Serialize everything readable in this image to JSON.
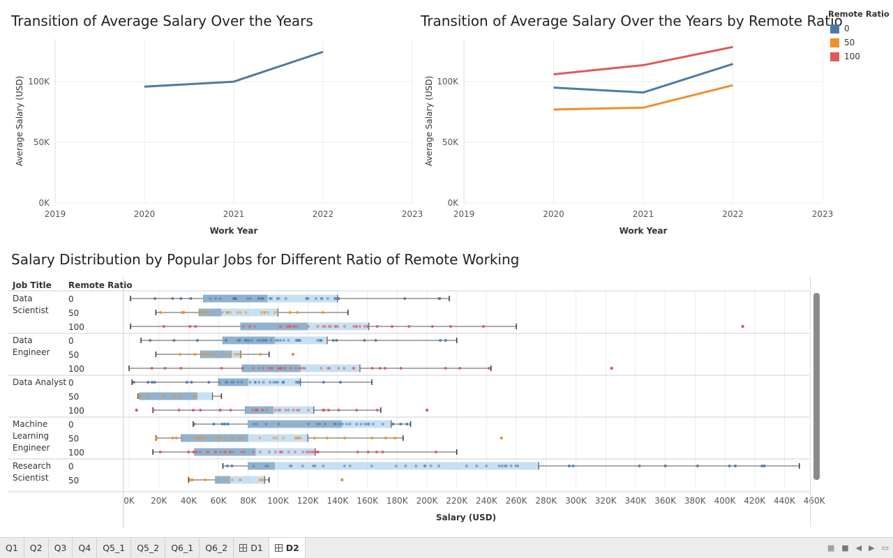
{
  "colors": {
    "r0": "#4e79a7",
    "r50": "#f28e2b",
    "r100": "#e15759",
    "grid": "#ececec",
    "boxDark": "#8fb3cf",
    "boxLight": "#c6e0f2"
  },
  "chart1": {
    "title": "Transition of Average Salary Over the Years",
    "xlabel": "Work Year",
    "ylabel": "Average Salary (USD)",
    "xticks": [
      "2019",
      "2020",
      "2021",
      "2022",
      "2023"
    ],
    "yticks": [
      "0K",
      "50K",
      "100K"
    ]
  },
  "chart2": {
    "title": "Transition of Average Salary Over the Years by Remote Ratio",
    "xlabel": "Work Year",
    "ylabel": "Average Salary (USD)",
    "xticks": [
      "2019",
      "2020",
      "2021",
      "2022",
      "2023"
    ],
    "yticks": [
      "0K",
      "50K",
      "100K"
    ]
  },
  "legend": {
    "title": "Remote Ratio",
    "items": [
      {
        "label": "0",
        "color": "#4e79a7"
      },
      {
        "label": "50",
        "color": "#f28e2b"
      },
      {
        "label": "100",
        "color": "#e15759"
      }
    ]
  },
  "chart3": {
    "title": "Salary Distribution by Popular Jobs for Different Ratio of Remote Working",
    "col_job": "Job Title",
    "col_ratio": "Remote Ratio",
    "xlabel": "Salary (USD)",
    "xticks": [
      "0K",
      "20K",
      "40K",
      "60K",
      "80K",
      "100K",
      "120K",
      "140K",
      "160K",
      "180K",
      "200K",
      "220K",
      "240K",
      "260K",
      "280K",
      "300K",
      "320K",
      "340K",
      "360K",
      "380K",
      "400K",
      "420K",
      "440K",
      "460K"
    ]
  },
  "chart_data": [
    {
      "type": "line",
      "title": "Transition of Average Salary Over the Years",
      "xlabel": "Work Year",
      "ylabel": "Average Salary (USD)",
      "x": [
        2020,
        2021,
        2022
      ],
      "series": [
        {
          "values": [
            95800,
            99900,
            124500
          ]
        }
      ],
      "xlim": [
        2019,
        2023
      ],
      "ylim": [
        0,
        135000
      ],
      "grid": true
    },
    {
      "type": "line",
      "title": "Transition of Average Salary Over the Years by Remote Ratio",
      "xlabel": "Work Year",
      "ylabel": "Average Salary (USD)",
      "x": [
        2020,
        2021,
        2022
      ],
      "series": [
        {
          "name": "0",
          "values": [
            95000,
            91000,
            114500
          ]
        },
        {
          "name": "50",
          "values": [
            77000,
            78500,
            97000
          ]
        },
        {
          "name": "100",
          "values": [
            106000,
            113500,
            128500
          ]
        }
      ],
      "xlim": [
        2019,
        2023
      ],
      "ylim": [
        0,
        135000
      ],
      "grid": true,
      "legend": "top-right"
    },
    {
      "type": "box",
      "title": "Salary Distribution by Popular Jobs for Different Ratio of Remote Working",
      "xlabel": "Salary (USD)",
      "xlim": [
        -4000,
        468000
      ],
      "rows": [
        {
          "job": "Data Scientist",
          "ratio": "0",
          "whiskerLow": 1,
          "q1": 50,
          "median": 93,
          "q3": 140,
          "whiskerHigh": 215,
          "outliers": []
        },
        {
          "job": "Data Scientist",
          "ratio": "50",
          "whiskerLow": 18,
          "q1": 47,
          "median": 62,
          "q3": 100,
          "whiskerHigh": 147,
          "outliers": []
        },
        {
          "job": "Data Scientist",
          "ratio": "100",
          "whiskerLow": 1,
          "q1": 75,
          "median": 120,
          "q3": 161,
          "whiskerHigh": 260,
          "outliers": [
            412
          ]
        },
        {
          "job": "Data Engineer",
          "ratio": "0",
          "whiskerLow": 8,
          "q1": 63,
          "median": 98,
          "q3": 133,
          "whiskerHigh": 220,
          "outliers": []
        },
        {
          "job": "Data Engineer",
          "ratio": "50",
          "whiskerLow": 18,
          "q1": 48,
          "median": 69,
          "q3": 75,
          "whiskerHigh": 94,
          "outliers": [
            110
          ]
        },
        {
          "job": "Data Engineer",
          "ratio": "100",
          "whiskerLow": 0,
          "q1": 76,
          "median": 115,
          "q3": 155,
          "whiskerHigh": 243,
          "outliers": [
            324
          ]
        },
        {
          "job": "Data Analyst",
          "ratio": "0",
          "whiskerLow": 2,
          "q1": 60,
          "median": 80,
          "q3": 115,
          "whiskerHigh": 163,
          "outliers": []
        },
        {
          "job": "Data Analyst",
          "ratio": "50",
          "whiskerLow": 6,
          "q1": 7,
          "median": 46,
          "q3": 56,
          "whiskerHigh": 62,
          "outliers": []
        },
        {
          "job": "Data Analyst",
          "ratio": "100",
          "whiskerLow": 16,
          "q1": 78,
          "median": 97,
          "q3": 124,
          "whiskerHigh": 169,
          "outliers": [
            5,
            200
          ]
        },
        {
          "job": "Machine Learning Engineer",
          "ratio": "0",
          "whiskerLow": 43,
          "q1": 80,
          "median": 143,
          "q3": 176,
          "whiskerHigh": 189,
          "outliers": []
        },
        {
          "job": "Machine Learning Engineer",
          "ratio": "50",
          "whiskerLow": 18,
          "q1": 35,
          "median": 80,
          "q3": 120,
          "whiskerHigh": 184,
          "outliers": [
            250
          ]
        },
        {
          "job": "Machine Learning Engineer",
          "ratio": "100",
          "whiskerLow": 16,
          "q1": 44,
          "median": 85,
          "q3": 125,
          "whiskerHigh": 220,
          "outliers": []
        },
        {
          "job": "Research Scientist",
          "ratio": "0",
          "whiskerLow": 63,
          "q1": 80,
          "median": 98,
          "q3": 275,
          "whiskerHigh": 450,
          "outliers": []
        },
        {
          "job": "Research Scientist",
          "ratio": "50",
          "whiskerLow": 40,
          "q1": 58,
          "median": 68,
          "q3": 91,
          "whiskerHigh": 94,
          "outliers": [
            143
          ]
        }
      ],
      "value_unit": "K USD"
    }
  ],
  "tabs": [
    {
      "label": "Q1",
      "icon": false,
      "active": false
    },
    {
      "label": "Q2",
      "icon": false,
      "active": false
    },
    {
      "label": "Q3",
      "icon": false,
      "active": false
    },
    {
      "label": "Q4",
      "icon": false,
      "active": false
    },
    {
      "label": "Q5_1",
      "icon": false,
      "active": false
    },
    {
      "label": "Q5_2",
      "icon": false,
      "active": false
    },
    {
      "label": "Q6_1",
      "icon": false,
      "active": false
    },
    {
      "label": "Q6_2",
      "icon": false,
      "active": false
    },
    {
      "label": "D1",
      "icon": true,
      "active": false
    },
    {
      "label": "D2",
      "icon": true,
      "active": true
    }
  ]
}
